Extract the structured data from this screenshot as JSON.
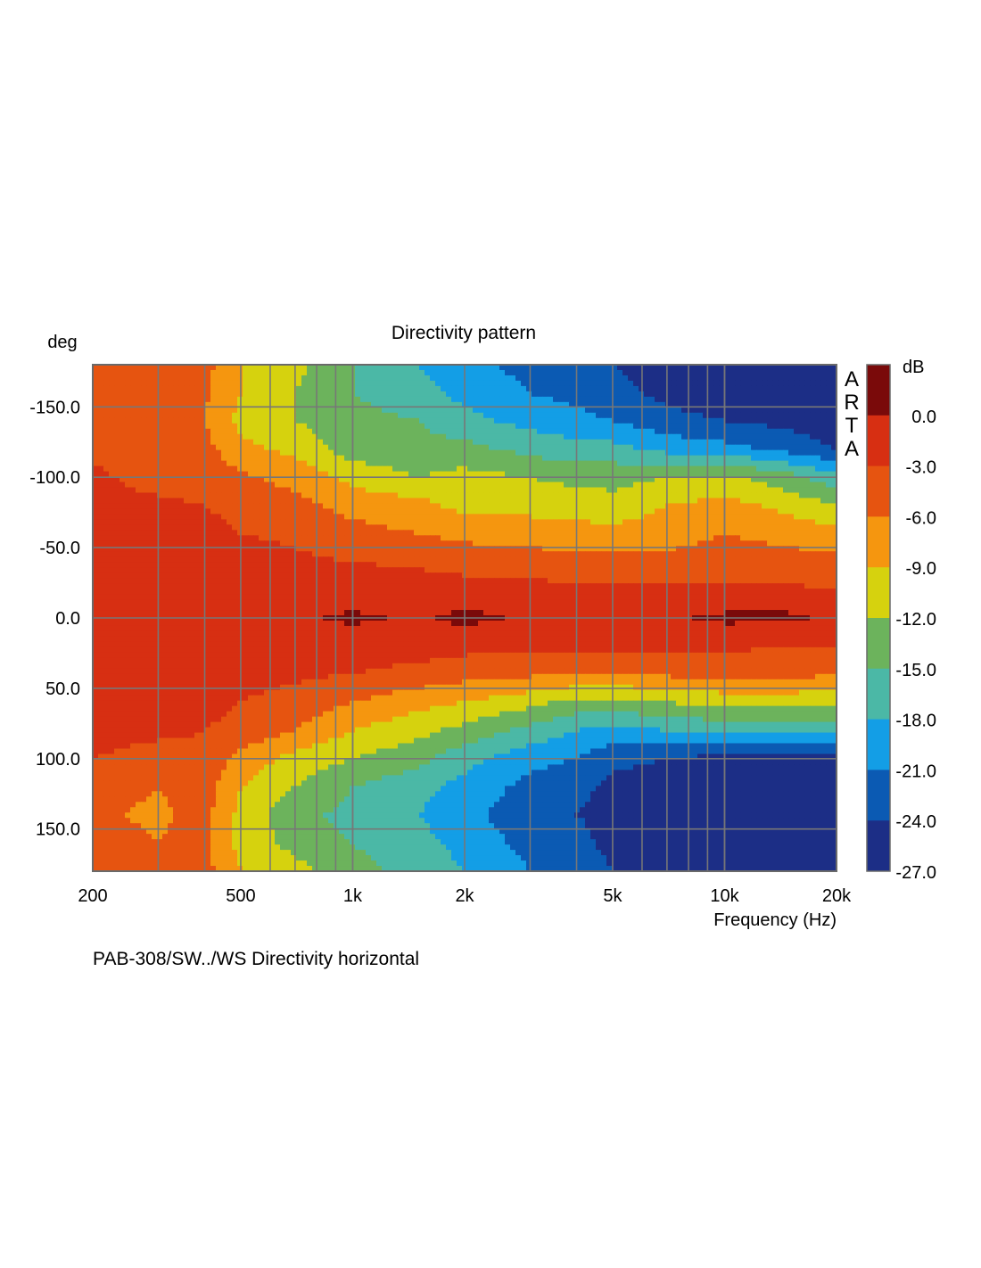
{
  "chart_data": {
    "type": "heatmap",
    "title": "Directivity pattern",
    "ylabel": "deg",
    "xlabel": "Frequency (Hz)",
    "footer": "PAB-308/SW../WS  Directivity horizontal",
    "watermark": "ARTA",
    "x_scale": "log",
    "xlim": [
      200,
      20000
    ],
    "ylim": [
      -180,
      180
    ],
    "x_ticks": [
      {
        "value": 200,
        "label": "200"
      },
      {
        "value": 500,
        "label": "500"
      },
      {
        "value": 1000,
        "label": "1k"
      },
      {
        "value": 2000,
        "label": "2k"
      },
      {
        "value": 5000,
        "label": "5k"
      },
      {
        "value": 10000,
        "label": "10k"
      },
      {
        "value": 20000,
        "label": "20k"
      }
    ],
    "y_ticks": [
      {
        "value": -150,
        "label": "-150.0"
      },
      {
        "value": -100,
        "label": "-100.0"
      },
      {
        "value": -50,
        "label": "-50.0"
      },
      {
        "value": 0,
        "label": "0.0"
      },
      {
        "value": 50,
        "label": "50.0"
      },
      {
        "value": 100,
        "label": "100.0"
      },
      {
        "value": 150,
        "label": "150.0"
      }
    ],
    "grid": true,
    "colorbar": {
      "unit": "dB",
      "range": [
        -27,
        3
      ],
      "labels": [
        "0.0",
        "-3.0",
        "-6.0",
        "-9.0",
        "-12.0",
        "-15.0",
        "-18.0",
        "-21.0",
        "-24.0",
        "-27.0"
      ],
      "bands": [
        {
          "from": 0,
          "to": 3,
          "color": "#7a0a0a"
        },
        {
          "from": -3,
          "to": 0,
          "color": "#d72f12"
        },
        {
          "from": -6,
          "to": -3,
          "color": "#e65410"
        },
        {
          "from": -9,
          "to": -6,
          "color": "#f5960f"
        },
        {
          "from": -12,
          "to": -9,
          "color": "#d6d20e"
        },
        {
          "from": -15,
          "to": -12,
          "color": "#6cb35c"
        },
        {
          "from": -18,
          "to": -15,
          "color": "#4bb8a6"
        },
        {
          "from": -21,
          "to": -18,
          "color": "#139ee6"
        },
        {
          "from": -24,
          "to": -21,
          "color": "#0b5ab3"
        },
        {
          "from": -27,
          "to": -24,
          "color": "#1c2e86"
        }
      ]
    },
    "frequencies": [
      200,
      300,
      400,
      500,
      700,
      1000,
      1500,
      2000,
      3000,
      4000,
      5000,
      7000,
      10000,
      15000,
      20000
    ],
    "angles": [
      -180,
      -160,
      -140,
      -120,
      -100,
      -80,
      -60,
      -40,
      -20,
      0,
      20,
      40,
      60,
      80,
      100,
      120,
      140,
      160,
      180
    ],
    "level_db": [
      [
        -3.5,
        -4,
        -5,
        -9,
        -11,
        -15,
        -18,
        -20,
        -22,
        -23,
        -24,
        -25,
        -26,
        -26,
        -27
      ],
      [
        -3.5,
        -5,
        -5.5,
        -9,
        -12,
        -15,
        -17,
        -19,
        -21,
        -22,
        -23,
        -25,
        -26,
        -26,
        -27
      ],
      [
        -4,
        -5.5,
        -6,
        -10,
        -12,
        -14,
        -15,
        -17,
        -19,
        -20,
        -21,
        -23,
        -24,
        -25,
        -26
      ],
      [
        -3.5,
        -5,
        -5,
        -8,
        -10,
        -13.5,
        -14,
        -14,
        -16,
        -17,
        -17,
        -19,
        -20,
        -22,
        -24
      ],
      [
        -2.5,
        -4,
        -4,
        -5.5,
        -7,
        -10,
        -12,
        -11,
        -12,
        -13,
        -13,
        -12,
        -11,
        -14,
        -17
      ],
      [
        -2,
        -2.5,
        -3,
        -4,
        -5,
        -7,
        -8,
        -10,
        -10,
        -10,
        -11,
        -9,
        -8,
        -10,
        -12
      ],
      [
        -1.5,
        -2,
        -2,
        -3,
        -3.5,
        -5,
        -6,
        -7,
        -7.5,
        -8,
        -8,
        -7.5,
        -6,
        -7,
        -8
      ],
      [
        -1,
        -1,
        -1.5,
        -2,
        -2.5,
        -3,
        -3.5,
        -4,
        -4.5,
        -5,
        -5,
        -5,
        -4.5,
        -5,
        -5
      ],
      [
        -0.5,
        -0.5,
        -1,
        -1,
        -1,
        -1.5,
        -1.5,
        -2,
        -2,
        -2.5,
        -2.5,
        -2.5,
        -2.5,
        -2.5,
        -3
      ],
      [
        -0.5,
        -0.5,
        -0.5,
        -0.5,
        -0.5,
        0.5,
        -0.5,
        0.8,
        -0.5,
        -0.5,
        -0.5,
        -0.5,
        0.6,
        0.6,
        -1
      ],
      [
        -0.5,
        -0.5,
        -1,
        -1,
        -1,
        -1.5,
        -1.5,
        -2,
        -2.5,
        -2.5,
        -2.5,
        -2.5,
        -2.5,
        -3,
        -3
      ],
      [
        -1,
        -1,
        -1.5,
        -2,
        -2.5,
        -3,
        -4,
        -5,
        -5.5,
        -6,
        -6,
        -5.5,
        -5,
        -5,
        -6
      ],
      [
        -1.5,
        -2,
        -2,
        -3,
        -4,
        -6,
        -8,
        -9,
        -11,
        -13,
        -13,
        -12,
        -11,
        -11,
        -11
      ],
      [
        -2,
        -2.5,
        -3,
        -4,
        -6,
        -9,
        -11,
        -13,
        -16,
        -18,
        -19,
        -18,
        -17,
        -17,
        -17
      ],
      [
        -3,
        -4,
        -3.5,
        -7,
        -10,
        -12,
        -14,
        -17,
        -20,
        -21,
        -23,
        -24,
        -25,
        -25,
        -26
      ],
      [
        -5,
        -6,
        -4.5,
        -9,
        -12,
        -15,
        -17,
        -19,
        -22,
        -23,
        -25,
        -26,
        -27,
        -27,
        -27
      ],
      [
        -5.5,
        -6.5,
        -5,
        -10,
        -14,
        -16,
        -18,
        -20,
        -23,
        -24,
        -25,
        -26,
        -27,
        -27,
        -27
      ],
      [
        -5,
        -6,
        -5,
        -10,
        -13,
        -15,
        -17,
        -19,
        -22,
        -23,
        -25,
        -26,
        -26,
        -27,
        -27
      ],
      [
        -3.5,
        -4.5,
        -5,
        -9,
        -11,
        -14,
        -16,
        -18,
        -21,
        -22,
        -24,
        -25,
        -26,
        -26,
        -27
      ]
    ]
  }
}
